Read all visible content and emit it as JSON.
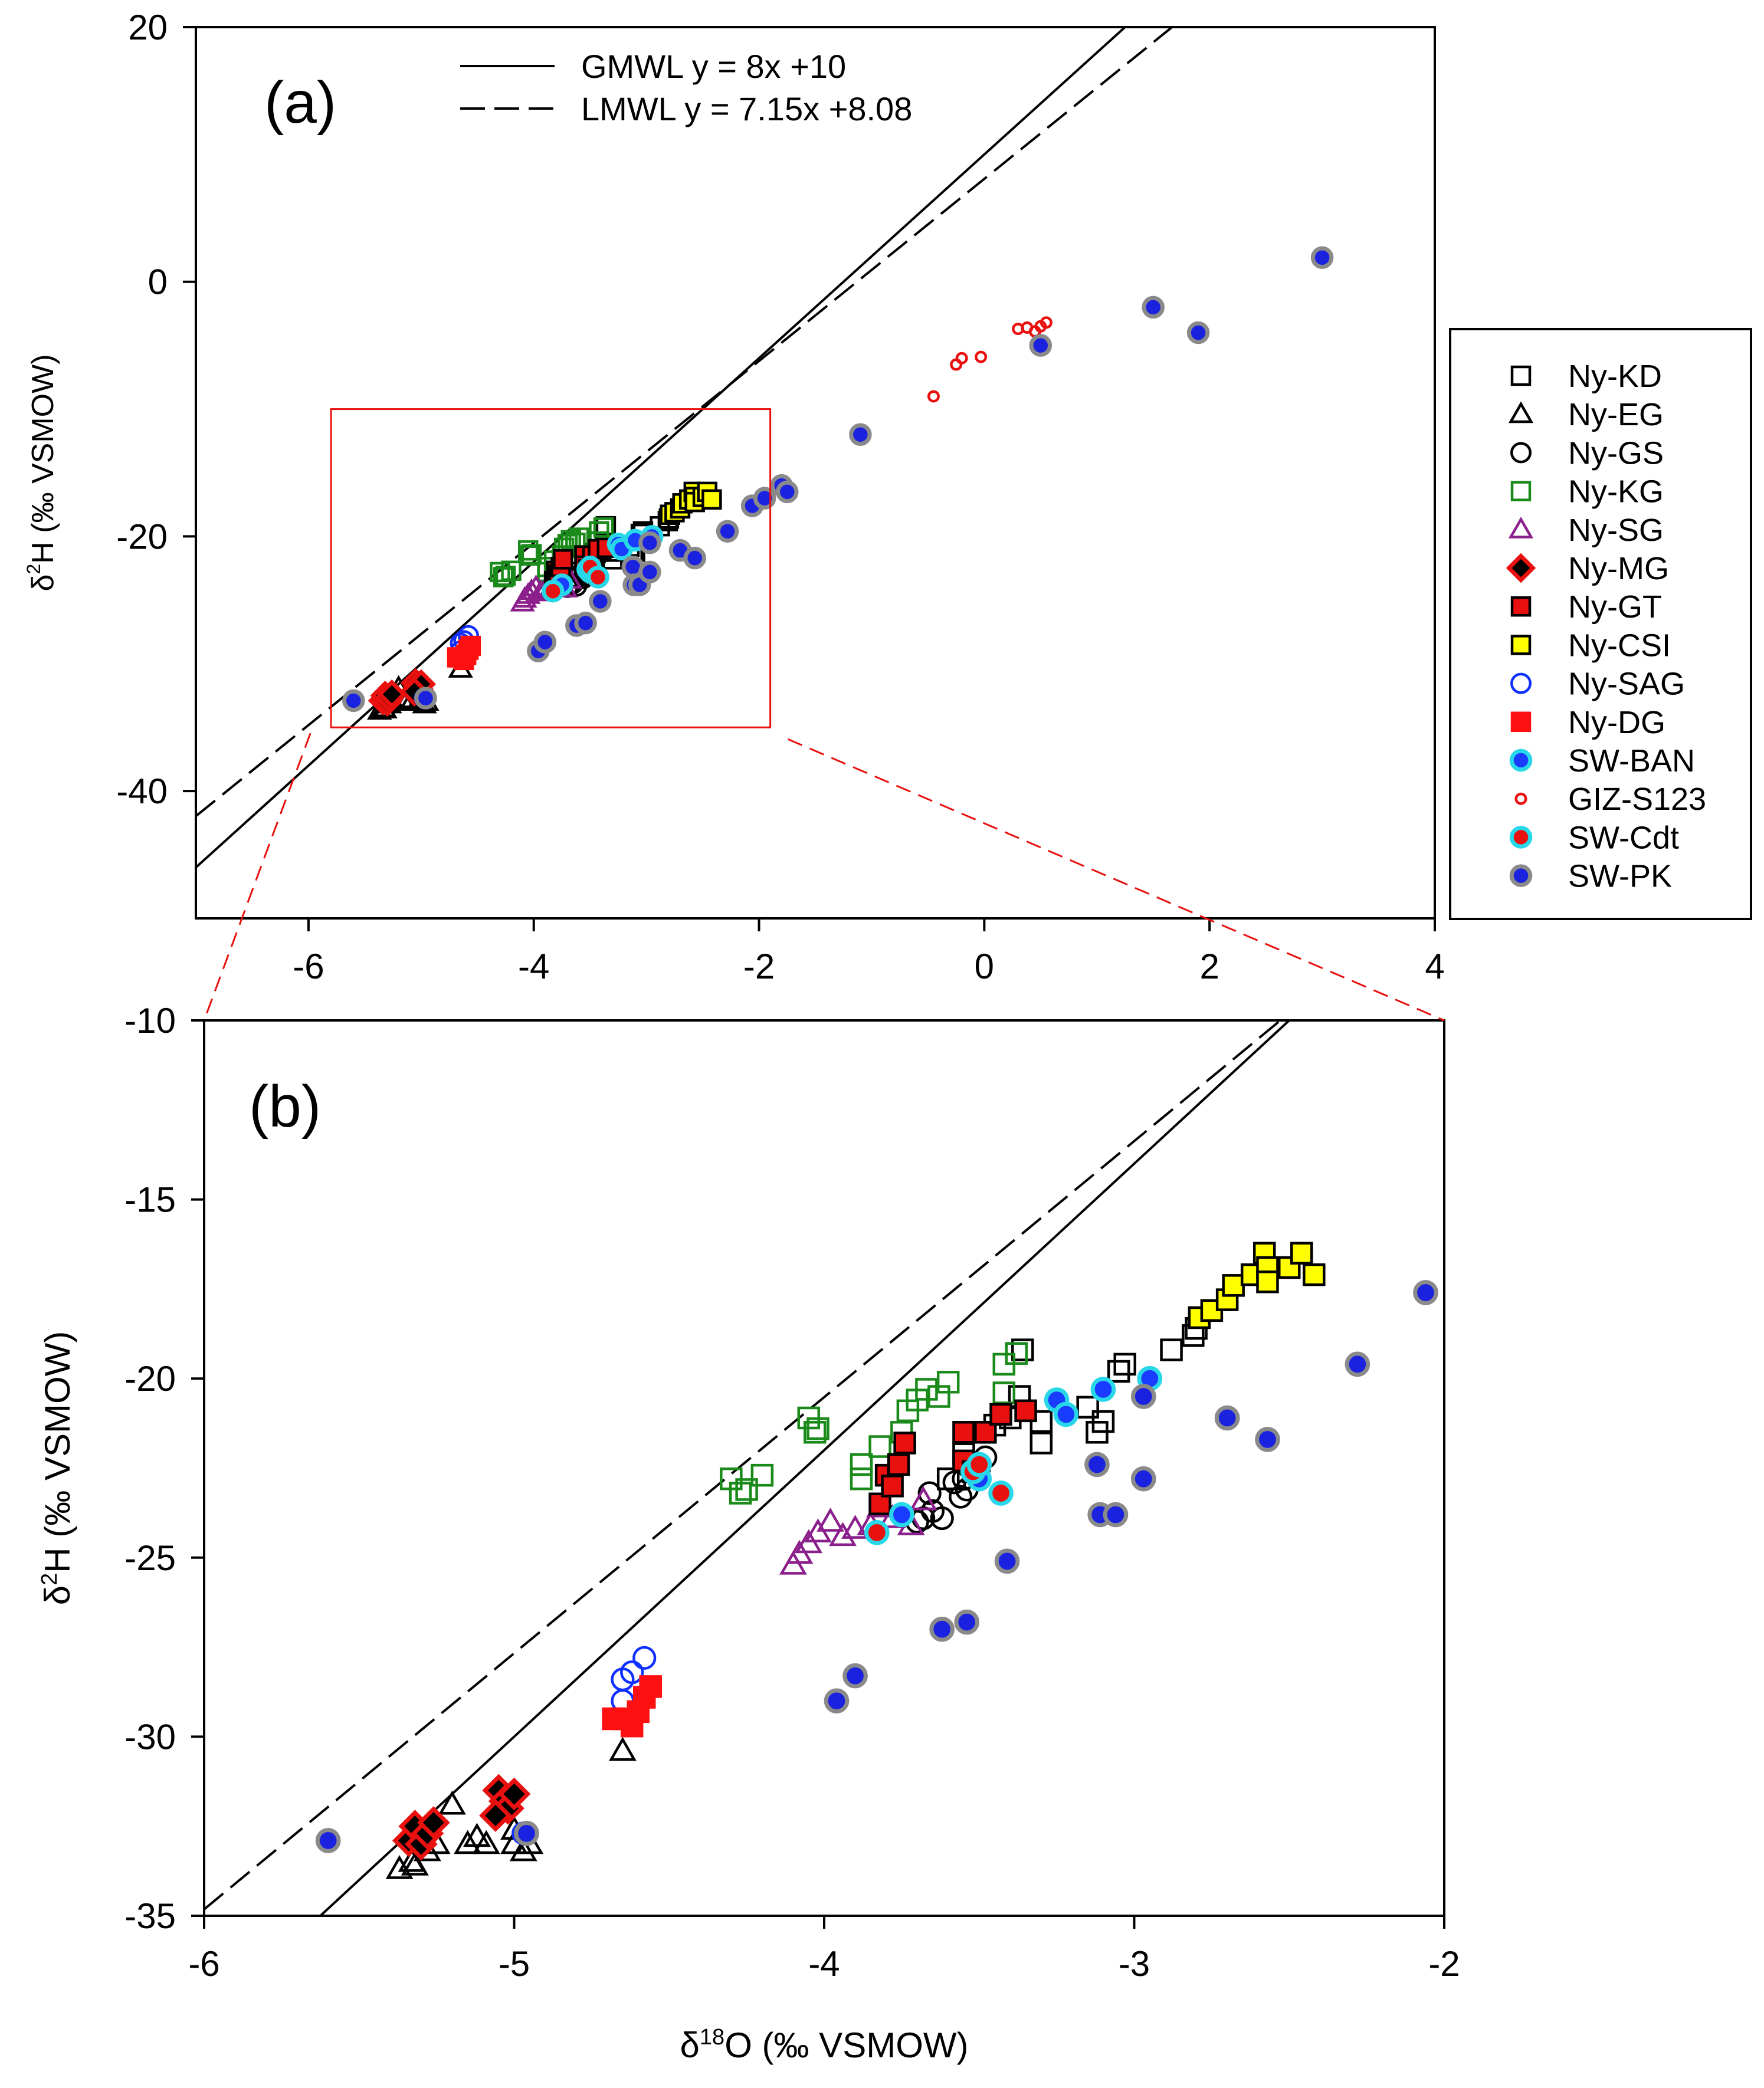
{
  "chart_data": [
    {
      "type": "scatter",
      "panel_label": "(a)",
      "xlim": [
        -7,
        4
      ],
      "ylim": [
        -50,
        20
      ],
      "xticks": [
        "-6",
        "-4",
        "-2",
        "0",
        "2",
        "4"
      ],
      "yticks": [
        "20",
        "0",
        "-20",
        "-40"
      ],
      "xlabel": "",
      "ylabel_main": "δ",
      "ylabel_sup": "2",
      "ylabel_rest": "H (‰ VSMOW)",
      "zoom_box": {
        "x": [
          -5.8,
          -1.9
        ],
        "y": [
          -35,
          -10
        ]
      },
      "lines": [
        {
          "name": "GMWL",
          "label": "GMWL y = 8x +10",
          "slope": 8,
          "intercept": 10,
          "style": "solid"
        },
        {
          "name": "LMWL",
          "label": "LMWL y = 7.15x +8.08",
          "slope": 7.15,
          "intercept": 8.08,
          "style": "dashed"
        }
      ]
    },
    {
      "type": "scatter",
      "panel_label": "(b)",
      "xlim": [
        -6,
        -2
      ],
      "ylim": [
        -35,
        -10
      ],
      "xticks": [
        "-6",
        "-5",
        "-4",
        "-3",
        "-2"
      ],
      "yticks": [
        "-10",
        "-15",
        "-20",
        "-25",
        "-30",
        "-35"
      ],
      "xlabel_main": "δ",
      "xlabel_sup": "18",
      "xlabel_rest": "O (‰ VSMOW)",
      "ylabel_main": "δ",
      "ylabel_sup": "2",
      "ylabel_rest": "H (‰ VSMOW)",
      "lines": [
        {
          "name": "GMWL",
          "slope": 8,
          "intercept": 10,
          "style": "solid"
        },
        {
          "name": "LMWL",
          "slope": 7.15,
          "intercept": 8.08,
          "style": "dashed"
        }
      ]
    }
  ],
  "legend": [
    {
      "key": "KD",
      "label": "Ny-KD",
      "shape": "square",
      "fill": "none",
      "stroke": "#000000"
    },
    {
      "key": "EG",
      "label": "Ny-EG",
      "shape": "triangle",
      "fill": "none",
      "stroke": "#000000"
    },
    {
      "key": "GS",
      "label": "Ny-GS",
      "shape": "circle",
      "fill": "none",
      "stroke": "#000000"
    },
    {
      "key": "KG",
      "label": "Ny-KG",
      "shape": "square",
      "fill": "none",
      "stroke": "#1a8a1a"
    },
    {
      "key": "SG",
      "label": "Ny-SG",
      "shape": "triangle",
      "fill": "none",
      "stroke": "#8b1f8b"
    },
    {
      "key": "MG",
      "label": "Ny-MG",
      "shape": "diamond",
      "fill": "#000000",
      "stroke": "#e8110f"
    },
    {
      "key": "GT",
      "label": "Ny-GT",
      "shape": "square",
      "fill": "#e8110f",
      "stroke": "#000000"
    },
    {
      "key": "CSI",
      "label": "Ny-CSI",
      "shape": "square",
      "fill": "#ffff00",
      "stroke": "#000000"
    },
    {
      "key": "SAG",
      "label": "Ny-SAG",
      "shape": "circle",
      "fill": "none",
      "stroke": "#1030ff"
    },
    {
      "key": "DG",
      "label": "Ny-DG",
      "shape": "square",
      "fill": "#ff1010",
      "stroke": "#ff1010"
    },
    {
      "key": "BAN",
      "label": "SW-BAN",
      "shape": "circle",
      "fill": "#1a3cff",
      "stroke": "#28d8e8"
    },
    {
      "key": "GIZ",
      "label": "GIZ-S123",
      "shape": "smallcircle",
      "fill": "none",
      "stroke": "#e8110f"
    },
    {
      "key": "Cdt",
      "label": "SW-Cdt",
      "shape": "circle",
      "fill": "#e8110f",
      "stroke": "#28d8e8"
    },
    {
      "key": "PK",
      "label": "SW-PK",
      "shape": "circle",
      "fill": "#1a22e0",
      "stroke": "#8a8a8a"
    }
  ],
  "series": [
    {
      "key": "KD",
      "points": [
        [
          -3.36,
          -19.2
        ],
        [
          -3.37,
          -20.5
        ],
        [
          -3.3,
          -21.2
        ],
        [
          -3.3,
          -21.8
        ],
        [
          -3.4,
          -21.1
        ],
        [
          -3.45,
          -21.3
        ],
        [
          -3.5,
          -21.5
        ],
        [
          -3.15,
          -20.8
        ],
        [
          -3.12,
          -21.5
        ],
        [
          -3.1,
          -21.2
        ],
        [
          -3.05,
          -19.8
        ],
        [
          -3.03,
          -19.6
        ],
        [
          -2.88,
          -19.2
        ],
        [
          -2.81,
          -18.8
        ],
        [
          -2.8,
          -18.6
        ],
        [
          -3.6,
          -22.8
        ],
        [
          -3.55,
          -22.1
        ]
      ]
    },
    {
      "key": "EG",
      "points": [
        [
          -5.37,
          -33.7
        ],
        [
          -5.33,
          -33.5
        ],
        [
          -5.32,
          -33.6
        ],
        [
          -5.28,
          -33.2
        ],
        [
          -5.25,
          -33.0
        ],
        [
          -5.2,
          -31.9
        ],
        [
          -5.15,
          -33.0
        ],
        [
          -5.12,
          -32.8
        ],
        [
          -5.09,
          -33.0
        ],
        [
          -5.0,
          -33.0
        ],
        [
          -5.0,
          -32.6
        ],
        [
          -4.97,
          -33.2
        ],
        [
          -4.95,
          -33.0
        ],
        [
          -4.65,
          -30.4
        ]
      ]
    },
    {
      "key": "GS",
      "points": [
        [
          -3.75,
          -23.8
        ],
        [
          -3.7,
          -24.0
        ],
        [
          -3.68,
          -23.9
        ],
        [
          -3.65,
          -23.7
        ],
        [
          -3.62,
          -23.9
        ],
        [
          -3.58,
          -22.9
        ],
        [
          -3.56,
          -23.3
        ],
        [
          -3.55,
          -22.8
        ],
        [
          -3.54,
          -23.1
        ],
        [
          -3.5,
          -22.5
        ],
        [
          -3.48,
          -22.2
        ],
        [
          -3.66,
          -23.2
        ]
      ]
    },
    {
      "key": "KG",
      "points": [
        [
          -4.3,
          -22.8
        ],
        [
          -4.27,
          -23.2
        ],
        [
          -4.25,
          -23.1
        ],
        [
          -4.2,
          -22.7
        ],
        [
          -4.05,
          -21.1
        ],
        [
          -4.03,
          -21.5
        ],
        [
          -4.02,
          -21.4
        ],
        [
          -3.88,
          -22.4
        ],
        [
          -3.88,
          -22.8
        ],
        [
          -3.82,
          -21.9
        ],
        [
          -3.75,
          -21.5
        ],
        [
          -3.73,
          -20.9
        ],
        [
          -3.7,
          -20.6
        ],
        [
          -3.67,
          -20.3
        ],
        [
          -3.63,
          -20.5
        ],
        [
          -3.6,
          -20.1
        ],
        [
          -3.42,
          -20.4
        ],
        [
          -3.42,
          -19.6
        ],
        [
          -3.38,
          -19.3
        ]
      ]
    },
    {
      "key": "SG",
      "points": [
        [
          -4.1,
          -25.2
        ],
        [
          -4.08,
          -24.9
        ],
        [
          -4.05,
          -24.6
        ],
        [
          -4.02,
          -24.3
        ],
        [
          -3.98,
          -24.0
        ],
        [
          -3.94,
          -24.4
        ],
        [
          -3.9,
          -24.2
        ],
        [
          -3.85,
          -24.1
        ],
        [
          -3.82,
          -23.6
        ],
        [
          -3.78,
          -23.9
        ],
        [
          -3.72,
          -24.1
        ],
        [
          -3.68,
          -23.4
        ]
      ]
    },
    {
      "key": "MG",
      "points": [
        [
          -5.34,
          -32.9
        ],
        [
          -5.32,
          -32.5
        ],
        [
          -5.3,
          -33.0
        ],
        [
          -5.28,
          -32.7
        ],
        [
          -5.26,
          -32.4
        ],
        [
          -5.05,
          -31.5
        ],
        [
          -5.03,
          -31.8
        ],
        [
          -5.02,
          -32.0
        ],
        [
          -5.0,
          -31.6
        ],
        [
          -5.06,
          -32.2
        ]
      ]
    },
    {
      "key": "GT",
      "points": [
        [
          -3.82,
          -23.5
        ],
        [
          -3.8,
          -22.7
        ],
        [
          -3.78,
          -23.0
        ],
        [
          -3.76,
          -22.4
        ],
        [
          -3.74,
          -21.8
        ],
        [
          -3.55,
          -21.5
        ],
        [
          -3.55,
          -22.3
        ],
        [
          -3.52,
          -22.6
        ],
        [
          -3.48,
          -21.5
        ],
        [
          -3.43,
          -21.0
        ],
        [
          -3.35,
          -20.9
        ]
      ]
    },
    {
      "key": "CSI",
      "points": [
        [
          -2.79,
          -18.3
        ],
        [
          -2.75,
          -18.1
        ],
        [
          -2.7,
          -17.8
        ],
        [
          -2.68,
          -17.4
        ],
        [
          -2.62,
          -17.1
        ],
        [
          -2.58,
          -16.5
        ],
        [
          -2.57,
          -16.9
        ],
        [
          -2.57,
          -17.3
        ],
        [
          -2.5,
          -16.9
        ],
        [
          -2.46,
          -16.5
        ],
        [
          -2.42,
          -17.1
        ]
      ]
    },
    {
      "key": "SAG",
      "points": [
        [
          -4.65,
          -29.0
        ],
        [
          -4.65,
          -28.4
        ],
        [
          -4.62,
          -28.2
        ],
        [
          -4.58,
          -27.8
        ],
        [
          -4.97,
          -32.7
        ]
      ]
    },
    {
      "key": "DG",
      "points": [
        [
          -4.68,
          -29.5
        ],
        [
          -4.65,
          -29.5
        ],
        [
          -4.62,
          -29.7
        ],
        [
          -4.6,
          -29.3
        ],
        [
          -4.58,
          -28.9
        ],
        [
          -4.56,
          -28.6
        ]
      ]
    },
    {
      "key": "BAN",
      "points": [
        [
          -3.25,
          -20.6
        ],
        [
          -3.22,
          -21.0
        ],
        [
          -3.1,
          -20.3
        ],
        [
          -2.95,
          -20.0
        ],
        [
          -3.75,
          -23.8
        ],
        [
          -3.5,
          -22.8
        ]
      ]
    },
    {
      "key": "GIZ",
      "points": [
        [
          -0.45,
          -9.0
        ],
        [
          -0.25,
          -6.5
        ],
        [
          -0.2,
          -6.0
        ],
        [
          -0.03,
          -5.9
        ],
        [
          0.3,
          -3.7
        ],
        [
          0.38,
          -3.6
        ],
        [
          0.45,
          -3.9
        ],
        [
          0.5,
          -3.5
        ],
        [
          0.55,
          -3.2
        ]
      ]
    },
    {
      "key": "Cdt",
      "points": [
        [
          -3.83,
          -24.3
        ],
        [
          -3.52,
          -22.6
        ],
        [
          -3.5,
          -22.4
        ],
        [
          -3.43,
          -23.2
        ]
      ]
    },
    {
      "key": "PK",
      "points": [
        [
          -5.6,
          -32.9
        ],
        [
          -4.96,
          -32.7
        ],
        [
          -3.96,
          -29.0
        ],
        [
          -3.9,
          -28.3
        ],
        [
          -3.62,
          -27.0
        ],
        [
          -3.54,
          -26.8
        ],
        [
          -3.41,
          -25.1
        ],
        [
          -3.12,
          -22.4
        ],
        [
          -3.11,
          -23.8
        ],
        [
          -3.06,
          -23.8
        ],
        [
          -2.97,
          -22.8
        ],
        [
          -2.97,
          -20.5
        ],
        [
          -2.7,
          -21.1
        ],
        [
          -2.57,
          -21.7
        ],
        [
          -2.28,
          -19.6
        ],
        [
          -2.06,
          -17.6
        ],
        [
          -1.95,
          -17.0
        ],
        [
          -1.8,
          -16.0
        ],
        [
          -1.75,
          -16.5
        ],
        [
          -1.1,
          -12.0
        ],
        [
          0.5,
          -5.0
        ],
        [
          1.5,
          -2.0
        ],
        [
          1.9,
          -4.0
        ],
        [
          3.0,
          1.9
        ]
      ]
    }
  ]
}
